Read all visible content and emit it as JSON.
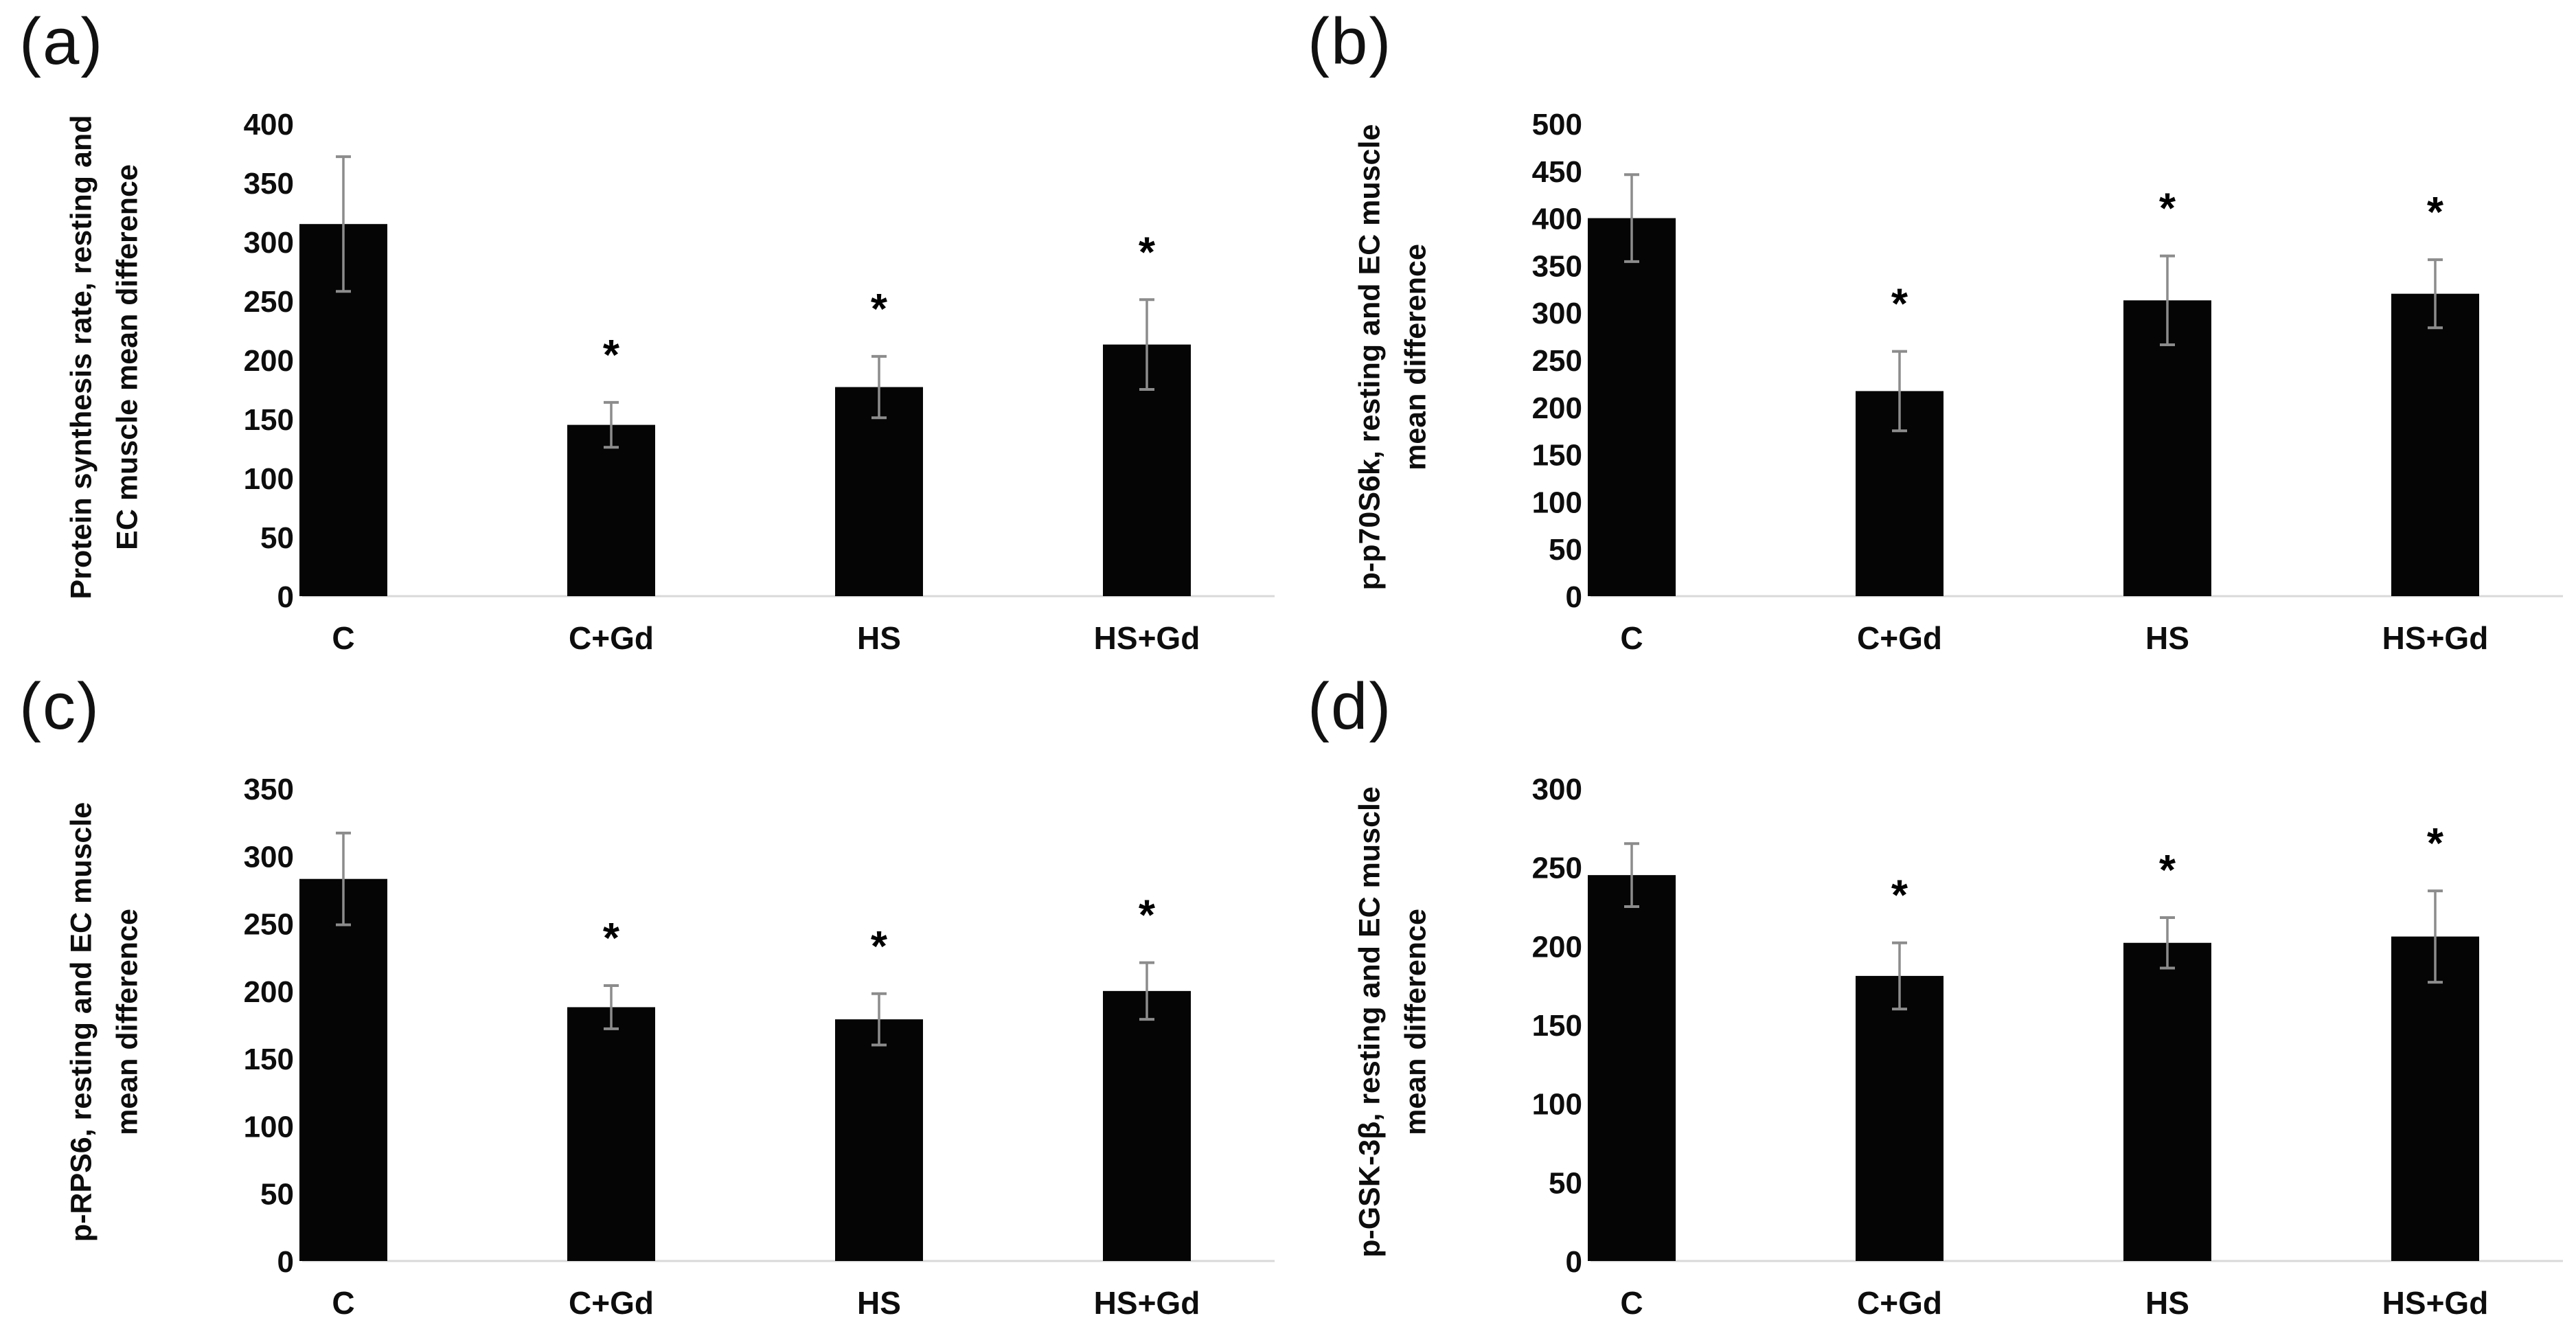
{
  "figure": {
    "background": "#ffffff",
    "bar_color": "#050505",
    "error_bar_color": "#8c8c8c",
    "baseline_color": "#d9d9d9",
    "text_color": "#0d0d0d",
    "significance_marker": "*"
  },
  "chart_data": [
    {
      "type": "bar",
      "panel_label": "(a)",
      "ylabel_line1": "Protein synthesis rate, resting and",
      "ylabel_line2": "EC muscle mean difference",
      "categories": [
        "C",
        "C+Gd",
        "HS",
        "HS+Gd"
      ],
      "values": [
        315,
        145,
        177,
        213
      ],
      "errors": [
        57,
        19,
        26,
        38
      ],
      "significant": [
        false,
        true,
        true,
        true
      ],
      "ylim": [
        0,
        400
      ],
      "ytick_step": 50,
      "grid": false,
      "legend": "none"
    },
    {
      "type": "bar",
      "panel_label": "(b)",
      "ylabel_line1": "p-p70S6k, resting and EC muscle",
      "ylabel_line2": "mean difference",
      "categories": [
        "C",
        "C+Gd",
        "HS",
        "HS+Gd"
      ],
      "values": [
        400,
        217,
        313,
        320
      ],
      "errors": [
        46,
        42,
        47,
        36
      ],
      "significant": [
        false,
        true,
        true,
        true
      ],
      "ylim": [
        0,
        500
      ],
      "ytick_step": 50,
      "grid": false,
      "legend": "none"
    },
    {
      "type": "bar",
      "panel_label": "(c)",
      "ylabel_line1": "p-RPS6, resting and EC muscle",
      "ylabel_line2": "mean difference",
      "categories": [
        "C",
        "C+Gd",
        "HS",
        "HS+Gd"
      ],
      "values": [
        283,
        188,
        179,
        200
      ],
      "errors": [
        34,
        16,
        19,
        21
      ],
      "significant": [
        false,
        true,
        true,
        true
      ],
      "ylim": [
        0,
        350
      ],
      "ytick_step": 50,
      "grid": false,
      "legend": "none"
    },
    {
      "type": "bar",
      "panel_label": "(d)",
      "ylabel_line1": "p-GSK-3β, resting and EC muscle",
      "ylabel_line2": "mean difference",
      "categories": [
        "C",
        "C+Gd",
        "HS",
        "HS+Gd"
      ],
      "values": [
        245,
        181,
        202,
        206
      ],
      "errors": [
        20,
        21,
        16,
        29
      ],
      "significant": [
        false,
        true,
        true,
        true
      ],
      "ylim": [
        0,
        300
      ],
      "ytick_step": 50,
      "grid": false,
      "legend": "none"
    }
  ]
}
